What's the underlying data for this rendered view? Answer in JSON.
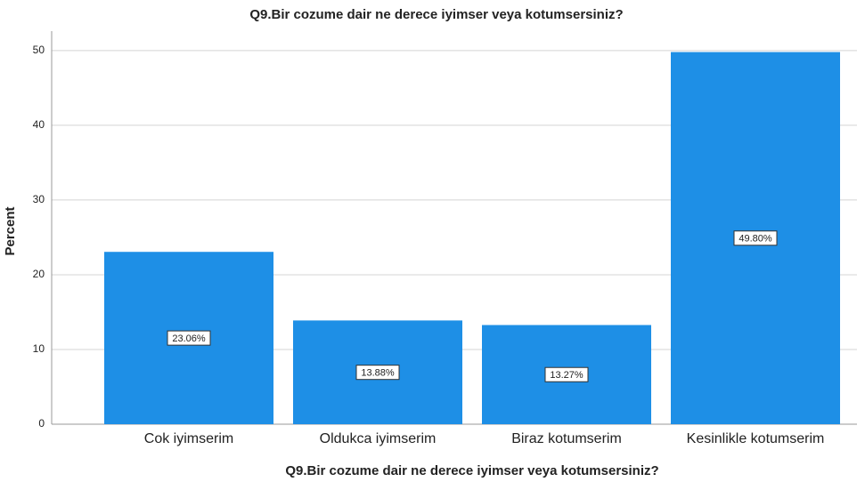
{
  "chart_data": {
    "type": "bar",
    "title": "Q9.Bir cozume dair ne derece iyimser veya kotumsersiniz?",
    "x_label": "Q9.Bir cozume dair ne derece iyimser veya kotumsersiniz?",
    "y_label": "Percent",
    "categories": [
      "Cok iyimserim",
      "Oldukca iyimserim",
      "Biraz kotumserim",
      "Kesinlikle kotumserim"
    ],
    "values": [
      23.06,
      13.88,
      13.27,
      49.8
    ],
    "value_labels": [
      "23.06%",
      "13.88%",
      "13.27%",
      "49.80%"
    ],
    "color": "#1e8fe6",
    "ylim": [
      0,
      52.6
    ],
    "yticks": [
      0,
      10,
      20,
      30,
      40,
      50
    ],
    "grid": true
  }
}
